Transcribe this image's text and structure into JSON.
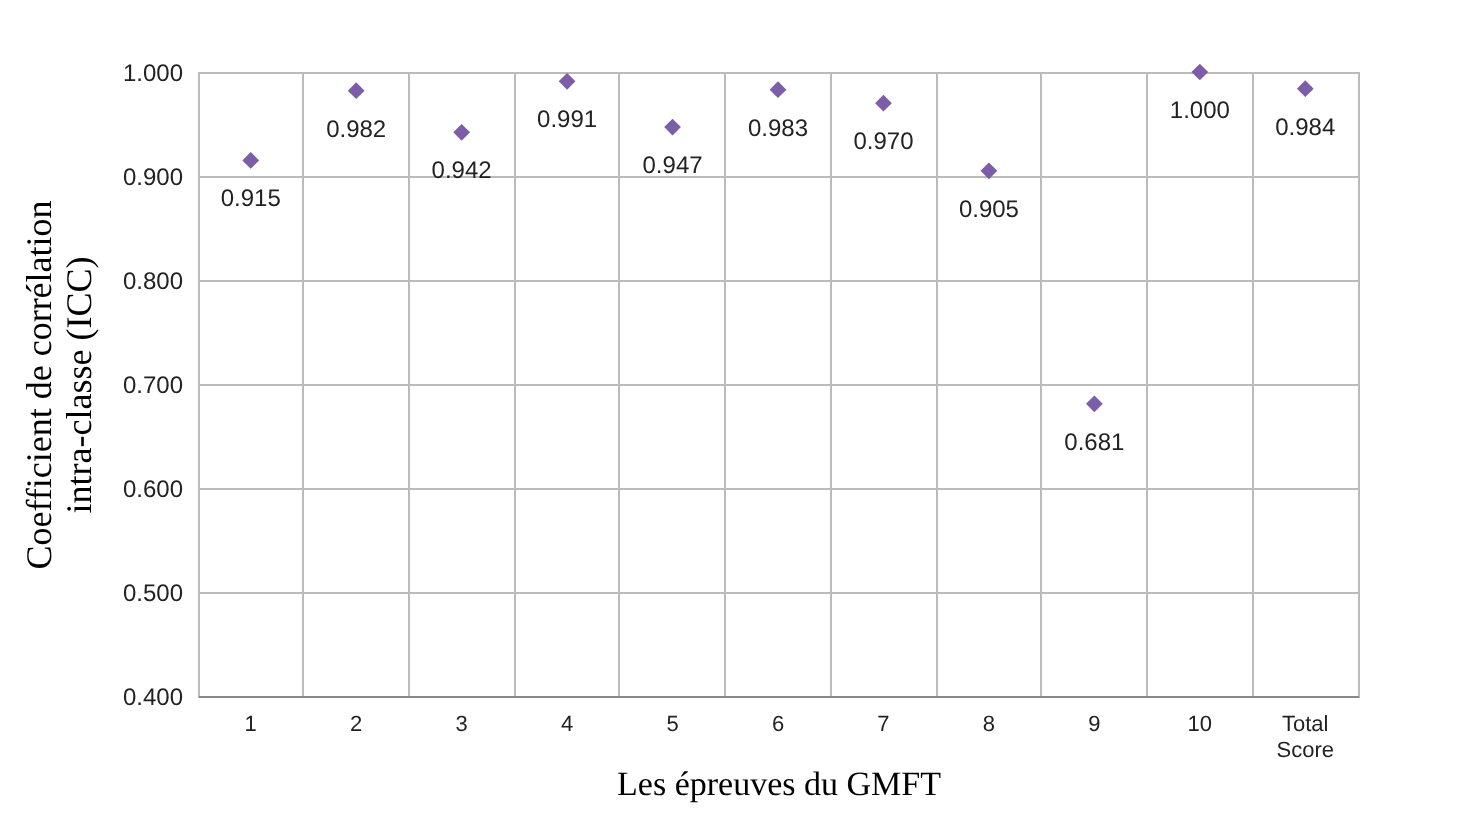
{
  "chart_data": {
    "type": "scatter",
    "xlabel": "Les épreuves du GMFT",
    "ylabel": "Coefficient de corrélation intra-classe (ICC)",
    "categories": [
      "1",
      "2",
      "3",
      "4",
      "5",
      "6",
      "7",
      "8",
      "9",
      "10",
      "Total Score"
    ],
    "series": [
      {
        "color": "#7b5ea7",
        "values": [
          0.915,
          0.982,
          0.942,
          0.991,
          0.947,
          0.983,
          0.97,
          0.905,
          0.681,
          1.0,
          0.984
        ]
      }
    ],
    "ylim": [
      0.4,
      1.0
    ],
    "yticks": [
      {
        "value": 0.4,
        "label": "0.400"
      },
      {
        "value": 0.5,
        "label": "0.500"
      },
      {
        "value": 0.6,
        "label": "0.600"
      },
      {
        "value": 0.7,
        "label": "0.700"
      },
      {
        "value": 0.8,
        "label": "0.800"
      },
      {
        "value": 0.9,
        "label": "0.900"
      },
      {
        "value": 1.0,
        "label": "1.000"
      }
    ],
    "value_labels": [
      "0.915",
      "0.982",
      "0.942",
      "0.991",
      "0.947",
      "0.983",
      "0.970",
      "0.905",
      "0.681",
      "1.000",
      "0.984"
    ],
    "grid": true,
    "marker": "diamond"
  }
}
